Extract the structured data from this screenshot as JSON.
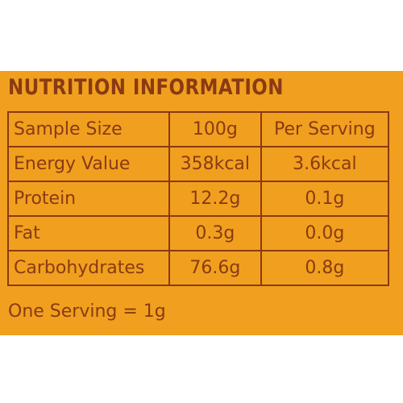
{
  "title": "NUTRITION INFORMATION",
  "table": {
    "rows": [
      [
        "Sample Size",
        "100g",
        "Per Serving"
      ],
      [
        "Energy Value",
        "358kcal",
        "3.6kcal"
      ],
      [
        "Protein",
        "12.2g",
        "0.1g"
      ],
      [
        "Fat",
        "0.3g",
        "0.0g"
      ],
      [
        "Carbohydrates",
        "76.6g",
        "0.8g"
      ]
    ]
  },
  "note": "One Serving = 1g"
}
